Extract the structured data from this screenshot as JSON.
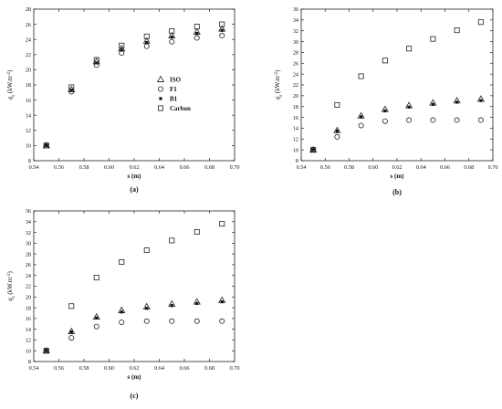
{
  "chart_data": [
    {
      "type": "scatter",
      "panel_label": "(a)",
      "xlabel": "s (m)",
      "ylabel": "q",
      "ylabel_sub": "s",
      "ylabel_unit": " (kW.m",
      "ylabel_sup": "-2",
      "ylabel_close": ")",
      "xlim": [
        0.54,
        0.7
      ],
      "ylim": [
        8,
        28
      ],
      "xticks": [
        "0.54",
        "0.56",
        "0.58",
        "0.60",
        "0.62",
        "0.64",
        "0.66",
        "0.68",
        "0.70"
      ],
      "yticks": [
        "8",
        "10",
        "12",
        "14",
        "16",
        "18",
        "20",
        "22",
        "24",
        "26",
        "28"
      ],
      "legend": {
        "position": "center",
        "entries": [
          "ISO",
          "F1",
          "B1",
          "Carbon"
        ]
      },
      "x": [
        0.55,
        0.57,
        0.59,
        0.61,
        0.63,
        0.65,
        0.67,
        0.69
      ],
      "series": [
        {
          "name": "ISO",
          "marker": "triangle",
          "values": [
            10.0,
            17.4,
            21.1,
            22.8,
            23.8,
            24.5,
            25.0,
            25.4
          ]
        },
        {
          "name": "F1",
          "marker": "circle",
          "values": [
            10.0,
            17.1,
            20.6,
            22.2,
            23.1,
            23.7,
            24.2,
            24.5
          ]
        },
        {
          "name": "B1",
          "marker": "dot",
          "values": [
            10.0,
            17.3,
            20.9,
            22.6,
            23.6,
            24.3,
            24.8,
            25.2
          ]
        },
        {
          "name": "Carbon",
          "marker": "square",
          "values": [
            10.0,
            17.7,
            21.3,
            23.2,
            24.4,
            25.1,
            25.7,
            26.0
          ]
        }
      ]
    },
    {
      "type": "scatter",
      "panel_label": "(b)",
      "xlabel": "s (m)",
      "ylabel": "q",
      "ylabel_sub": "s",
      "ylabel_unit": " (kW.m",
      "ylabel_sup": "-2",
      "ylabel_close": ")",
      "xlim": [
        0.54,
        0.7
      ],
      "ylim": [
        8,
        36
      ],
      "xticks": [
        "0.54",
        "0.56",
        "0.58",
        "0.60",
        "0.62",
        "0.64",
        "0.66",
        "0.68",
        "0.70"
      ],
      "yticks": [
        "8",
        "10",
        "12",
        "14",
        "16",
        "18",
        "20",
        "22",
        "24",
        "26",
        "28",
        "30",
        "32",
        "34",
        "36"
      ],
      "x": [
        0.55,
        0.57,
        0.59,
        0.61,
        0.63,
        0.65,
        0.67,
        0.69
      ],
      "series": [
        {
          "name": "ISO",
          "marker": "triangle",
          "values": [
            10.0,
            13.6,
            16.3,
            17.5,
            18.2,
            18.7,
            19.1,
            19.4
          ]
        },
        {
          "name": "F1",
          "marker": "circle",
          "values": [
            10.0,
            12.4,
            14.5,
            15.3,
            15.5,
            15.5,
            15.5,
            15.5
          ]
        },
        {
          "name": "B1",
          "marker": "dot",
          "values": [
            10.0,
            13.5,
            16.1,
            17.2,
            17.9,
            18.4,
            18.8,
            19.1
          ]
        },
        {
          "name": "Carbon",
          "marker": "square",
          "values": [
            10.0,
            18.3,
            23.6,
            26.5,
            28.7,
            30.5,
            32.1,
            33.6
          ]
        }
      ]
    },
    {
      "type": "scatter",
      "panel_label": "(c)",
      "xlabel": "s (m)",
      "ylabel": "q",
      "ylabel_sub": "s",
      "ylabel_unit": " (kW.m",
      "ylabel_sup": "-2",
      "ylabel_close": ")",
      "xlim": [
        0.54,
        0.7
      ],
      "ylim": [
        8,
        36
      ],
      "xticks": [
        "0.54",
        "0.56",
        "0.58",
        "0.60",
        "0.62",
        "0.64",
        "0.66",
        "0.68",
        "0.70"
      ],
      "yticks": [
        "8",
        "10",
        "12",
        "14",
        "16",
        "18",
        "20",
        "22",
        "24",
        "26",
        "28",
        "30",
        "32",
        "34",
        "36"
      ],
      "x": [
        0.55,
        0.57,
        0.59,
        0.61,
        0.63,
        0.65,
        0.67,
        0.69
      ],
      "series": [
        {
          "name": "ISO",
          "marker": "triangle",
          "values": [
            10.0,
            13.6,
            16.3,
            17.5,
            18.2,
            18.7,
            19.1,
            19.4
          ]
        },
        {
          "name": "F1",
          "marker": "circle",
          "values": [
            10.0,
            12.4,
            14.5,
            15.3,
            15.5,
            15.5,
            15.5,
            15.5
          ]
        },
        {
          "name": "B1",
          "marker": "dot",
          "values": [
            10.0,
            13.5,
            16.1,
            17.2,
            17.9,
            18.4,
            18.8,
            19.1
          ]
        },
        {
          "name": "Carbon",
          "marker": "square",
          "values": [
            10.0,
            18.3,
            23.6,
            26.5,
            28.7,
            30.5,
            32.1,
            33.6
          ]
        }
      ]
    }
  ]
}
